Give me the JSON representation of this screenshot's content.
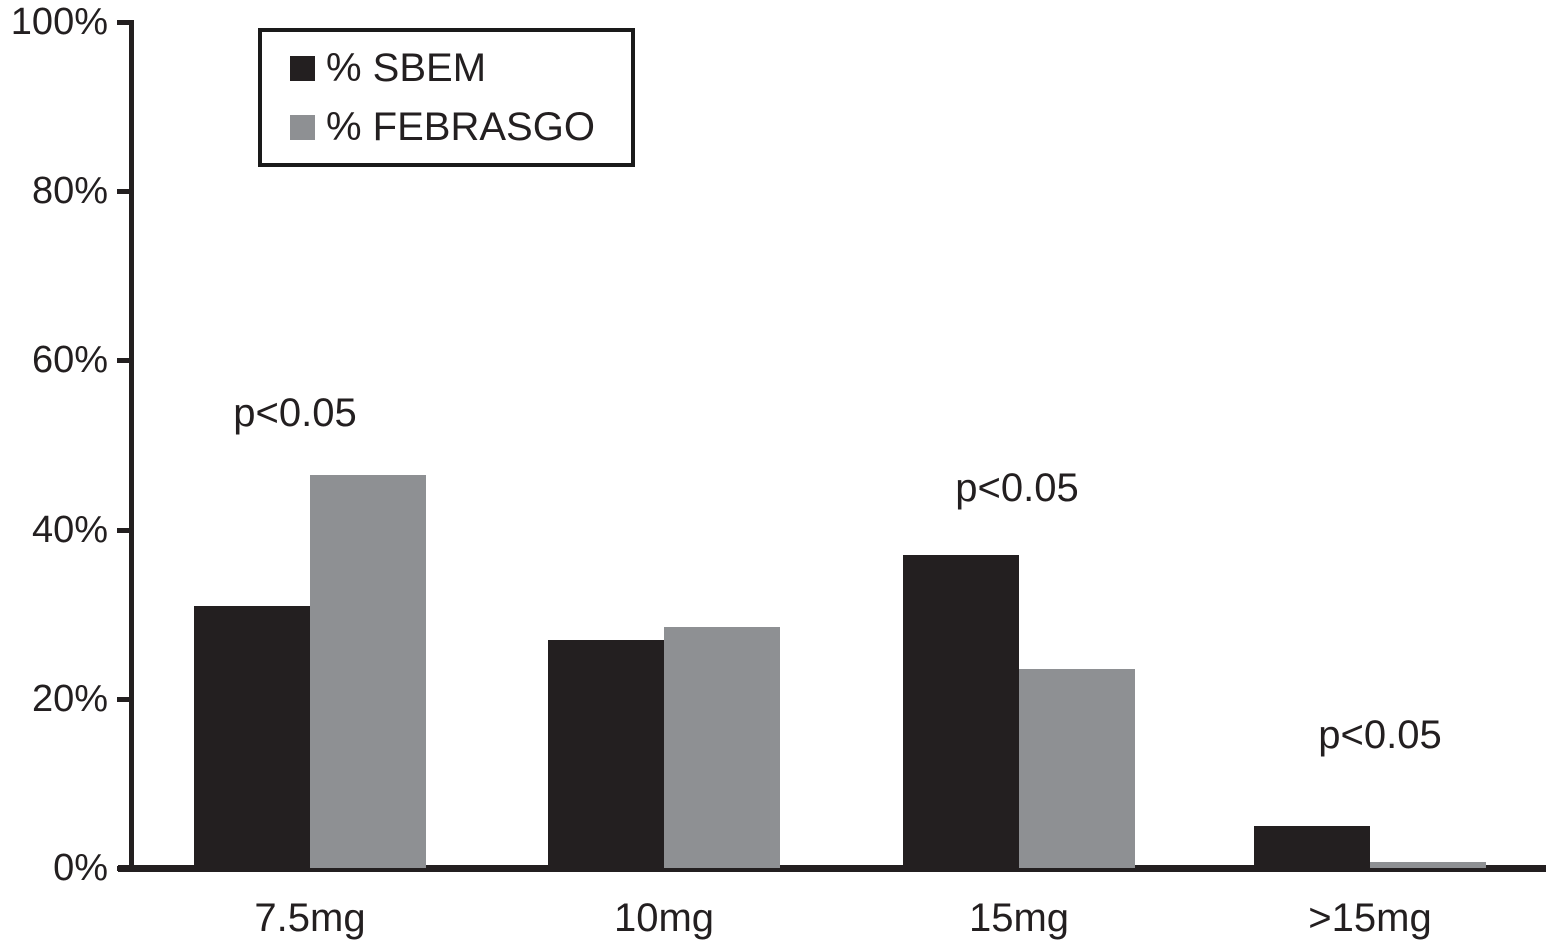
{
  "chart_data": {
    "type": "bar",
    "title": "",
    "xlabel": "",
    "ylabel": "",
    "categories": [
      "7.5mg",
      "10mg",
      "15mg",
      ">15mg"
    ],
    "series": [
      {
        "name": "% SBEM",
        "color": "#231f20",
        "values": [
          31,
          27,
          37,
          5
        ]
      },
      {
        "name": "% FEBRASGO",
        "color": "#8e9093",
        "values": [
          46.5,
          28.5,
          23.5,
          0.7
        ]
      }
    ],
    "ylim": [
      0,
      100
    ],
    "yticks": [
      {
        "label": "100%",
        "value": 100
      },
      {
        "label": "80%",
        "value": 80
      },
      {
        "label": "60%",
        "value": 60
      },
      {
        "label": "40%",
        "value": 40
      },
      {
        "label": "20%",
        "value": 20
      },
      {
        "label": "0%",
        "value": 0
      }
    ],
    "grid": false,
    "legend_position": "top-left",
    "annotations": [
      {
        "text": "p<0.05",
        "category": "7.5mg"
      },
      {
        "text": "p<0.05",
        "category": "15mg"
      },
      {
        "text": "p<0.05",
        "category": ">15mg"
      }
    ]
  }
}
